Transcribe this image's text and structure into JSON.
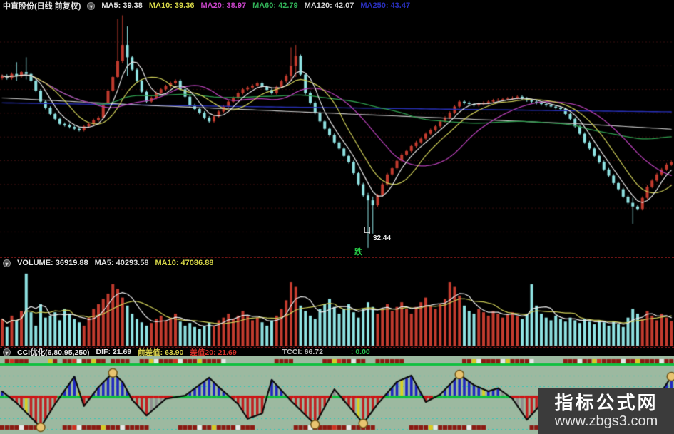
{
  "header": {
    "title": "中直股份(日线 前复权)",
    "collapse_glyph": "▾",
    "mas": [
      {
        "text": "MA5: 39.38",
        "color": "#e6e6e6"
      },
      {
        "text": "MA10: 39.36",
        "color": "#d8d848"
      },
      {
        "text": "MA20: 38.97",
        "color": "#c844c8"
      },
      {
        "text": "MA60: 42.79",
        "color": "#32b258"
      },
      {
        "text": "MA120: 42.07",
        "color": "#d6d6d6"
      },
      {
        "text": "MA250: 43.47",
        "color": "#2a30c0"
      }
    ]
  },
  "volume_header": {
    "items": [
      {
        "text": "VOLUME: 36919.88",
        "color": "#e6e6e6"
      },
      {
        "text": "MA5: 40293.58",
        "color": "#dcdcdc"
      },
      {
        "text": "MA10: 47086.88",
        "color": "#d8d848"
      }
    ]
  },
  "cci_header": {
    "items": [
      {
        "text": "CCI优化(6,80,95,250)",
        "color": "#e6e6e6"
      },
      {
        "text": "DIF: 21.69",
        "color": "#e6e6e6"
      },
      {
        "text": "前差值: 63.90",
        "color": "#d8d048"
      },
      {
        "text": "差值20: 21.69",
        "color": "#d23028"
      },
      {
        "text": "TCCI: 66.72",
        "color": "#bcbcbc"
      },
      {
        "text": ": 0.00",
        "color": "#28c050"
      }
    ]
  },
  "annotation": {
    "glyph": "凵",
    "price": "32.44",
    "label": "跌"
  },
  "watermark": {
    "line1": "指标公式网",
    "line2": "www.zbgs3.com"
  },
  "colors": {
    "up": "#c23b2e",
    "down": "#8fe3e3",
    "ma5": "#e8e8e8",
    "ma10": "#cfcf58",
    "ma20": "#b33fb3",
    "ma60": "#2f9e4f",
    "ma120": "#c8c8c8",
    "ma250": "#2830b8",
    "grid_main": "#3a1010",
    "vol_base": "#c03030",
    "cci_bg": "#9cb9a0",
    "cci_grid": "#2ec8b8",
    "cci_blue": "#2028c0",
    "cci_red": "#c02020",
    "cci_yellow": "#d8d020",
    "cci_gray": "#8f8f8f",
    "cci_zero_red": "#cc1818",
    "cci_zero_green": "#10c040",
    "cci_curve": "#0c0c0c",
    "gold": "#e8c470",
    "gold_edge": "#6e5418",
    "ribbon_r": "#8a1a12",
    "ribbon_R": "#d03020",
    "ribbon_y": "#d8c822",
    "ribbon_w": "#e8e8e8",
    "ribbon_green_line": "#10c040"
  },
  "chart_data": [
    {
      "name": "price",
      "type": "candlestick",
      "title": "中直股份 daily candles with MA5/MA10/MA20/MA60/MA120/MA250 overlays",
      "ylim": [
        31.8,
        51.5
      ],
      "low_marker": {
        "index": 76,
        "price": 32.44
      },
      "closes": [
        46.4,
        46.2,
        46.55,
        46.35,
        46.7,
        46.55,
        46.0,
        45.2,
        44.3,
        43.8,
        43.3,
        42.9,
        42.5,
        42.4,
        42.25,
        42.1,
        42.0,
        42.3,
        42.5,
        42.8,
        43.0,
        44.1,
        45.2,
        46.3,
        47.6,
        48.9,
        47.9,
        46.9,
        46.0,
        45.1,
        44.3,
        44.6,
        45.0,
        45.3,
        45.55,
        45.8,
        46.0,
        45.3,
        44.7,
        44.0,
        43.7,
        43.4,
        43.0,
        42.7,
        43.1,
        43.5,
        43.9,
        44.3,
        44.6,
        45.0,
        45.3,
        45.45,
        45.6,
        45.8,
        45.5,
        45.25,
        45.0,
        45.5,
        45.95,
        46.4,
        47.2,
        48.0,
        46.5,
        45.0,
        44.2,
        43.4,
        42.7,
        42.1,
        41.6,
        41.0,
        40.5,
        39.9,
        39.4,
        38.5,
        37.6,
        36.7,
        36.3,
        35.9,
        36.7,
        37.6,
        38.4,
        38.9,
        39.5,
        40.0,
        40.3,
        40.7,
        41.0,
        41.3,
        41.7,
        42.0,
        42.3,
        42.7,
        43.0,
        43.4,
        43.9,
        44.3,
        44.2,
        44.1,
        44.0,
        44.1,
        44.2,
        44.3,
        44.4,
        44.45,
        44.5,
        44.55,
        44.6,
        44.7,
        44.55,
        44.4,
        44.3,
        44.2,
        44.1,
        44.0,
        43.9,
        43.8,
        43.7,
        43.3,
        42.9,
        42.3,
        41.7,
        41.0,
        40.5,
        39.9,
        39.4,
        38.8,
        38.3,
        37.7,
        37.2,
        36.6,
        36.1,
        35.8,
        35.6,
        36.5,
        37.4,
        37.9,
        38.4,
        38.8,
        39.2,
        39.38
      ],
      "wick_overrides": {
        "3": [
          47.5,
          46.0
        ],
        "5": [
          47.9,
          46.1
        ],
        "24": [
          51.0,
          46.2
        ],
        "25": [
          51.3,
          47.4
        ],
        "26": [
          50.4,
          46.4
        ],
        "60": [
          48.7,
          46.0
        ],
        "61": [
          48.9,
          46.3
        ],
        "76": [
          36.9,
          32.44
        ],
        "77": [
          36.6,
          33.6
        ],
        "131": [
          36.5,
          34.4
        ]
      },
      "ma120_keypoints": [
        [
          0,
          44.6
        ],
        [
          30,
          44.0
        ],
        [
          60,
          43.5
        ],
        [
          90,
          43.0
        ],
        [
          120,
          42.5
        ],
        [
          139,
          42.07
        ]
      ],
      "ma250_keypoints": [
        [
          0,
          44.2
        ],
        [
          50,
          43.9
        ],
        [
          90,
          43.7
        ],
        [
          120,
          43.55
        ],
        [
          139,
          43.47
        ]
      ]
    },
    {
      "name": "volume",
      "type": "bar",
      "vmax": 110,
      "values": [
        40,
        28,
        45,
        38,
        52,
        108,
        50,
        30,
        62,
        42,
        45,
        50,
        38,
        55,
        48,
        40,
        35,
        30,
        42,
        55,
        62,
        70,
        78,
        92,
        85,
        72,
        60,
        48,
        40,
        35,
        30,
        34,
        40,
        45,
        38,
        42,
        48,
        36,
        30,
        34,
        28,
        25,
        30,
        35,
        30,
        38,
        42,
        48,
        40,
        45,
        52,
        44,
        38,
        42,
        35,
        30,
        38,
        45,
        55,
        68,
        95,
        88,
        60,
        52,
        45,
        40,
        55,
        62,
        70,
        58,
        48,
        55,
        62,
        50,
        42,
        55,
        65,
        58,
        48,
        55,
        62,
        52,
        58,
        65,
        55,
        48,
        58,
        65,
        72,
        60,
        55,
        62,
        70,
        95,
        88,
        75,
        60,
        52,
        48,
        55,
        50,
        45,
        52,
        48,
        42,
        46,
        50,
        44,
        40,
        48,
        92,
        60,
        48,
        42,
        38,
        45,
        40,
        36,
        42,
        38,
        34,
        40,
        36,
        32,
        38,
        35,
        30,
        36,
        32,
        28,
        42,
        55,
        48,
        40,
        52,
        45,
        38,
        48,
        42,
        37
      ]
    },
    {
      "name": "cci",
      "type": "line+bar",
      "keypoints": [
        [
          0,
          60
        ],
        [
          3,
          -50
        ],
        [
          8,
          -280
        ],
        [
          11,
          -60
        ],
        [
          15,
          200
        ],
        [
          17,
          -80
        ],
        [
          20,
          100
        ],
        [
          23,
          235
        ],
        [
          25,
          150
        ],
        [
          27,
          -20
        ],
        [
          30,
          -170
        ],
        [
          34,
          -10
        ],
        [
          38,
          20
        ],
        [
          43,
          190
        ],
        [
          45,
          100
        ],
        [
          49,
          -60
        ],
        [
          51,
          -200
        ],
        [
          54,
          -150
        ],
        [
          56,
          170
        ],
        [
          60,
          -30
        ],
        [
          65,
          -255
        ],
        [
          69,
          80
        ],
        [
          72,
          -80
        ],
        [
          75,
          -245
        ],
        [
          78,
          -60
        ],
        [
          82,
          150
        ],
        [
          85,
          210
        ],
        [
          88,
          -40
        ],
        [
          91,
          30
        ],
        [
          95,
          220
        ],
        [
          98,
          120
        ],
        [
          101,
          60
        ],
        [
          103,
          90
        ],
        [
          106,
          -10
        ],
        [
          109,
          -210
        ],
        [
          112,
          -60
        ],
        [
          117,
          -120
        ],
        [
          121,
          -180
        ],
        [
          126,
          -120
        ],
        [
          130,
          -220
        ],
        [
          134,
          -100
        ],
        [
          137,
          60
        ],
        [
          139,
          200
        ]
      ],
      "yellow_bars": [
        5,
        16,
        55,
        74,
        83,
        100,
        121
      ],
      "gray_ranges": [
        [
          31,
          37
        ],
        [
          68,
          70
        ],
        [
          104,
          108
        ]
      ],
      "gold_circles": [
        [
          8,
          -280
        ],
        [
          23,
          235
        ],
        [
          65,
          -255
        ],
        [
          75,
          -245
        ],
        [
          95,
          220
        ],
        [
          139,
          200
        ]
      ],
      "ribbon_top": ".rRrrr....yr.rrRwrryrr.rrrr..rrywrrrRwrrryrrrrw..........rrrr......rryRrrwrr..rrrrrr............rrywrrrrwyrrrrw......rrrwrryRrrrrwrryrrrrwrr",
      "ribbon_bottom": "rrrrwrrrr....rrRwrrrryrrrwrrrrr......rrrrwrryrrrrwrrr........rrrwrrrrRrrwrrrrr.......rrrrywrrrrrrwrrr.........rrrwrrrrrryrrrrwrrrrrrwrrrrrrr"
    }
  ]
}
